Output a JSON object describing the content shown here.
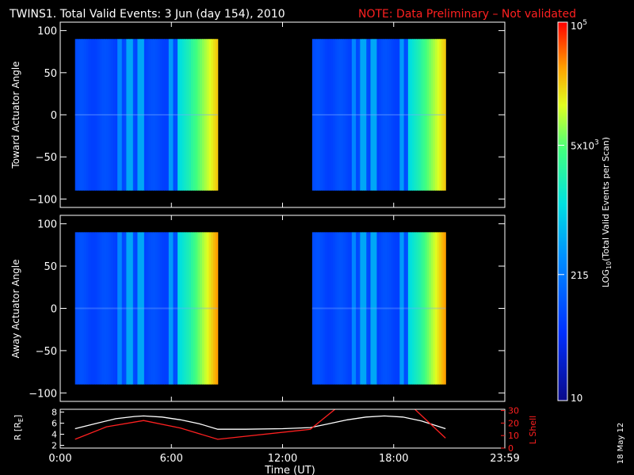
{
  "title": {
    "main": "TWINS1. Total Valid Events:  3 Jun (day 154), 2010",
    "note": "NOTE: Data Preliminary – Not validated"
  },
  "stamp": "18 May 12",
  "chart_data": [
    {
      "type": "heatmap",
      "panel": "toward",
      "ylabel": "Toward Actuator Angle",
      "xlim": [
        0,
        24
      ],
      "ylim": [
        -110,
        110
      ],
      "yticks": [
        "100",
        "50",
        "0",
        "−50",
        "−100"
      ],
      "ytick_values": [
        100,
        50,
        0,
        -50,
        -100
      ],
      "data_blocks": [
        {
          "x_start": 0.8,
          "x_end": 8.5,
          "y_start": -90,
          "y_end": 90
        },
        {
          "x_start": 13.6,
          "x_end": 20.8,
          "y_start": -90,
          "y_end": 90
        }
      ]
    },
    {
      "type": "heatmap",
      "panel": "away",
      "ylabel": "Away Actuator Angle",
      "xlim": [
        0,
        24
      ],
      "ylim": [
        -110,
        110
      ],
      "yticks": [
        "100",
        "50",
        "0",
        "−50",
        "−100"
      ],
      "ytick_values": [
        100,
        50,
        0,
        -50,
        -100
      ],
      "data_blocks": [
        {
          "x_start": 0.8,
          "x_end": 8.5,
          "y_start": -90,
          "y_end": 90
        },
        {
          "x_start": 13.6,
          "x_end": 20.8,
          "y_start": -90,
          "y_end": 90
        }
      ]
    },
    {
      "type": "line",
      "panel": "orbit",
      "xlabel": "Time (UT)",
      "xticks": [
        "0:00",
        "6:00",
        "12:00",
        "18:00",
        "23:59"
      ],
      "xtick_values": [
        0,
        6,
        12,
        18,
        24
      ],
      "ylabel_left": "R [R",
      "ylabel_left_sub": "E",
      "ylabel_left_end": "]",
      "yticks_left": [
        "8",
        "6",
        "4",
        "2"
      ],
      "ytick_left_values": [
        8,
        6,
        4,
        2
      ],
      "ylim_left": [
        1.5,
        8.5
      ],
      "ylabel_right": "L Shell",
      "yticks_right": [
        "30",
        "20",
        "10",
        "0"
      ],
      "ytick_right_values": [
        30,
        20,
        10,
        0
      ],
      "ylim_right": [
        0,
        31
      ],
      "series": [
        {
          "axis": "left",
          "color": "#ffffff",
          "x": [
            0.8,
            2,
            3,
            4,
            4.5,
            5.5,
            6.5,
            7.5,
            8.5,
            10,
            12,
            13.5,
            14.5,
            15.5,
            16.5,
            17.5,
            18.5,
            19.5,
            20.8
          ],
          "y": [
            5.0,
            6.0,
            6.8,
            7.2,
            7.3,
            7.1,
            6.6,
            5.9,
            4.9,
            4.9,
            5.0,
            5.2,
            5.9,
            6.6,
            7.1,
            7.3,
            7.1,
            6.4,
            5.0
          ]
        },
        {
          "axis": "right",
          "color": "#ff2020",
          "x": [
            0.8,
            2.5,
            4.5,
            6.5,
            8.5,
            13.5,
            15.0,
            19.0,
            20.8
          ],
          "y": [
            7,
            17,
            22,
            16,
            7,
            15,
            33,
            33,
            8
          ]
        }
      ]
    },
    {
      "type": "colorbar",
      "label_prefix": "LOG",
      "label_sub": "10",
      "label_suffix": "(Total Valid Events per Scan)",
      "ticks": [
        {
          "base": "10",
          "exp": "",
          "value": 10
        },
        {
          "base": "215",
          "exp": "",
          "value": 215
        },
        {
          "base": "5x10",
          "exp": "3",
          "value": 5000
        },
        {
          "base": "10",
          "exp": "5",
          "value": 100000
        }
      ],
      "range": [
        10,
        100000
      ]
    }
  ]
}
